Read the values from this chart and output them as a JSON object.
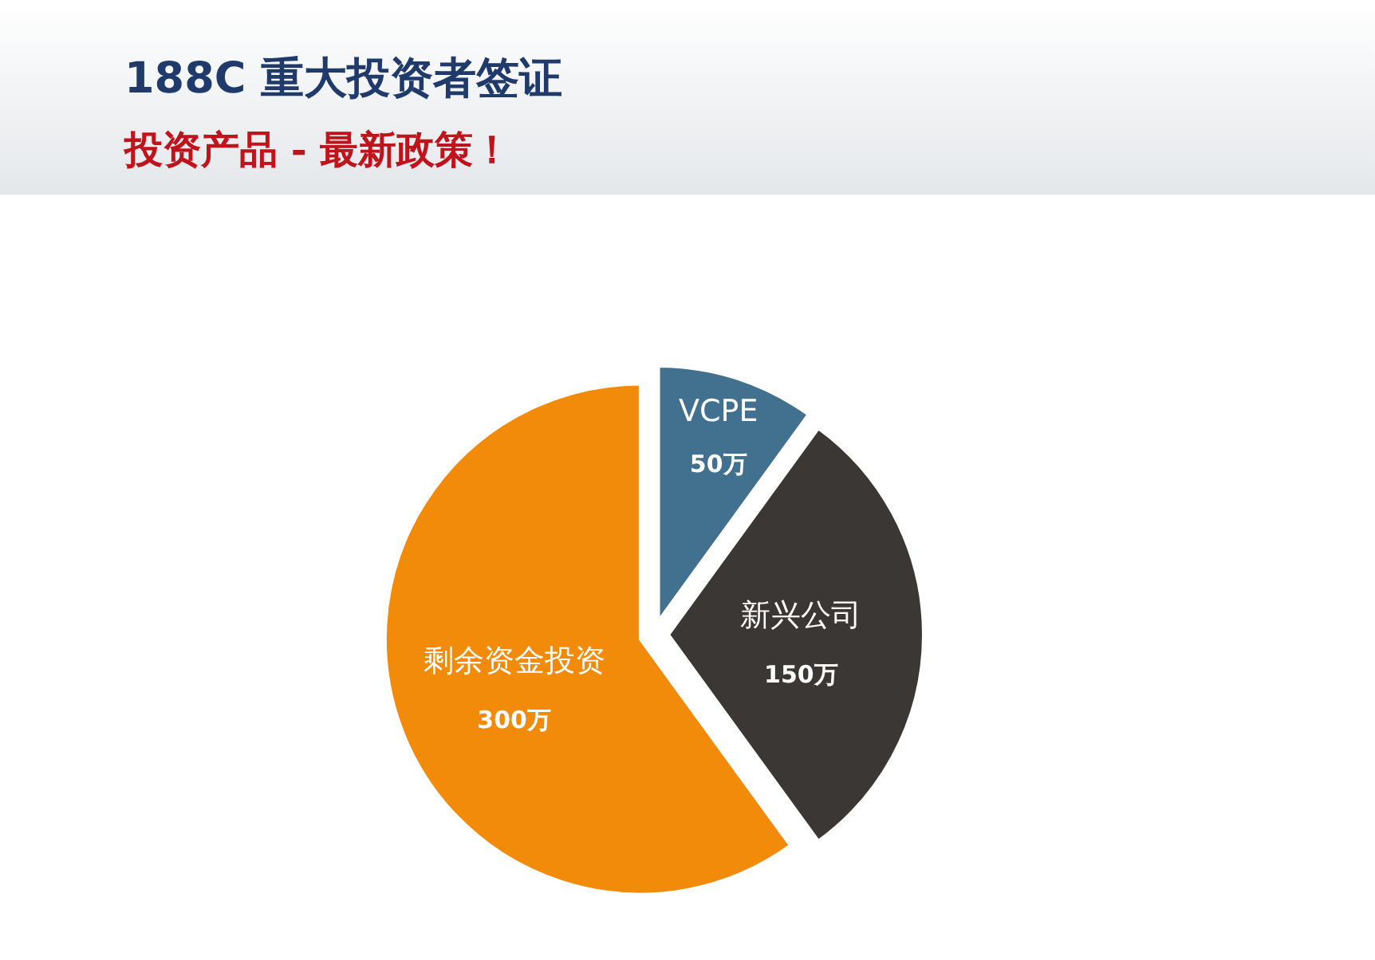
{
  "chart_data": {
    "type": "pie",
    "title": "188C 重大投资者签证",
    "subtitle": "投资产品 - 最新政策！",
    "categories": [
      "VCPE",
      "新兴公司",
      "剩余资金投资"
    ],
    "values": [
      50,
      150,
      300
    ],
    "value_labels": [
      "50万",
      "150万",
      "300万"
    ],
    "colors": [
      "#41718f",
      "#3b3734",
      "#f28a0a"
    ]
  }
}
